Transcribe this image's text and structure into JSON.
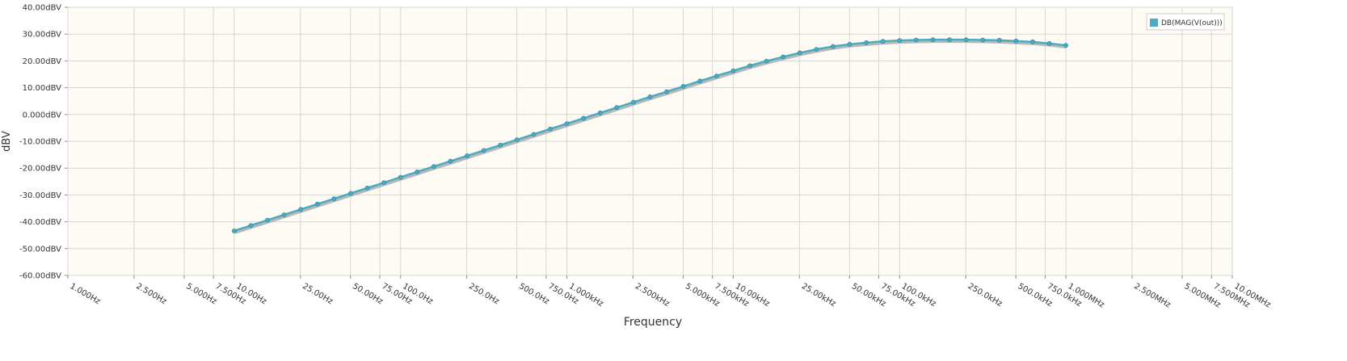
{
  "chart_data": {
    "type": "line",
    "xlabel": "Frequency",
    "ylabel": "dBV",
    "xscale": "log",
    "grid": true,
    "legend": "upper right",
    "xlim": [
      1,
      10000000
    ],
    "xticks": [
      {
        "value": 1,
        "label": "1.000Hz"
      },
      {
        "value": 2.5,
        "label": "2.500Hz"
      },
      {
        "value": 5,
        "label": "5.000Hz"
      },
      {
        "value": 7.5,
        "label": "7.500Hz"
      },
      {
        "value": 10,
        "label": "10.00Hz"
      },
      {
        "value": 25,
        "label": "25.00Hz"
      },
      {
        "value": 50,
        "label": "50.00Hz"
      },
      {
        "value": 75,
        "label": "75.00Hz"
      },
      {
        "value": 100,
        "label": "100.0Hz"
      },
      {
        "value": 250,
        "label": "250.0Hz"
      },
      {
        "value": 500,
        "label": "500.0Hz"
      },
      {
        "value": 750,
        "label": "750.0Hz"
      },
      {
        "value": 1000,
        "label": "1.000kHz"
      },
      {
        "value": 2500,
        "label": "2.500kHz"
      },
      {
        "value": 5000,
        "label": "5.000kHz"
      },
      {
        "value": 7500,
        "label": "7.500kHz"
      },
      {
        "value": 10000,
        "label": "10.00kHz"
      },
      {
        "value": 25000,
        "label": "25.00kHz"
      },
      {
        "value": 50000,
        "label": "50.00kHz"
      },
      {
        "value": 75000,
        "label": "75.00kHz"
      },
      {
        "value": 100000,
        "label": "100.0kHz"
      },
      {
        "value": 250000,
        "label": "250.0kHz"
      },
      {
        "value": 500000,
        "label": "500.0kHz"
      },
      {
        "value": 750000,
        "label": "750.0kHz"
      },
      {
        "value": 1000000,
        "label": "1.000MHz"
      },
      {
        "value": 2500000,
        "label": "2.500MHz"
      },
      {
        "value": 5000000,
        "label": "5.000MHz"
      },
      {
        "value": 7500000,
        "label": "7.500MHz"
      },
      {
        "value": 10000000,
        "label": "10.00MHz"
      }
    ],
    "ylim": [
      -60,
      40
    ],
    "yticks": [
      {
        "value": 40,
        "label": "40.00dBV"
      },
      {
        "value": 30,
        "label": "30.00dBV"
      },
      {
        "value": 20,
        "label": "20.00dBV"
      },
      {
        "value": 10,
        "label": "10.00dBV"
      },
      {
        "value": 0,
        "label": "0.000dBV"
      },
      {
        "value": -10,
        "label": "-10.00dBV"
      },
      {
        "value": -20,
        "label": "-20.00dBV"
      },
      {
        "value": -30,
        "label": "-30.00dBV"
      },
      {
        "value": -40,
        "label": "-40.00dBV"
      },
      {
        "value": -50,
        "label": "-50.00dBV"
      },
      {
        "value": -60,
        "label": "-60.00dBV"
      }
    ],
    "x": [
      10,
      12.59,
      15.85,
      19.95,
      25.12,
      31.62,
      39.81,
      50.12,
      63.1,
      79.43,
      100,
      125.9,
      158.5,
      199.5,
      251.2,
      316.2,
      398.1,
      501.2,
      631,
      794.3,
      1000,
      1259,
      1585,
      1995,
      2512,
      3162,
      3981,
      5012,
      6310,
      7943,
      10000,
      12590,
      15850,
      19950,
      25120,
      31620,
      39810,
      50120,
      63100,
      79430,
      100000,
      125900,
      158500,
      199500,
      251200,
      316200,
      398100,
      501200,
      631000,
      794300,
      1000000
    ],
    "series": [
      {
        "name": "DB(MAG(V(out)))",
        "color": "#4aabc2",
        "values": [
          -43.4,
          -41.4,
          -39.4,
          -37.4,
          -35.4,
          -33.4,
          -31.4,
          -29.4,
          -27.4,
          -25.4,
          -23.4,
          -21.4,
          -19.4,
          -17.4,
          -15.4,
          -13.4,
          -11.4,
          -9.4,
          -7.4,
          -5.4,
          -3.4,
          -1.4,
          0.6,
          2.6,
          4.6,
          6.6,
          8.5,
          10.5,
          12.5,
          14.4,
          16.3,
          18.2,
          19.9,
          21.5,
          23.0,
          24.3,
          25.4,
          26.2,
          26.8,
          27.3,
          27.6,
          27.8,
          27.9,
          27.9,
          27.9,
          27.8,
          27.7,
          27.4,
          27.1,
          26.5,
          25.8
        ]
      }
    ]
  }
}
